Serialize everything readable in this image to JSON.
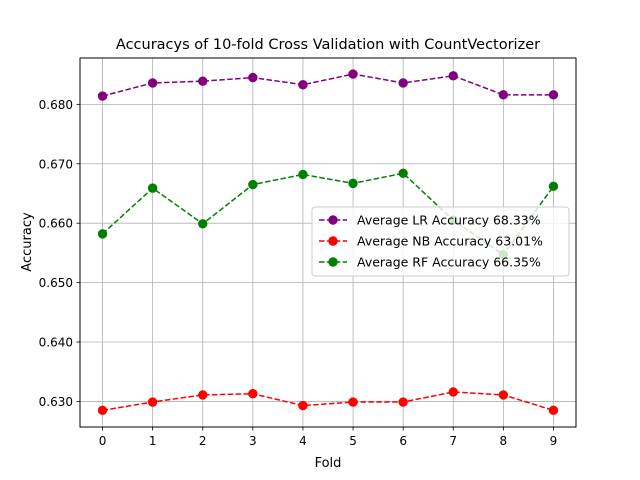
{
  "chart_data": {
    "type": "line",
    "title": "Accuracys of 10-fold Cross Validation with CountVectorizer",
    "xlabel": "Fold",
    "ylabel": "Accuracy",
    "x": [
      0,
      1,
      2,
      3,
      4,
      5,
      6,
      7,
      8,
      9
    ],
    "xticks": [
      "0",
      "1",
      "2",
      "3",
      "4",
      "5",
      "6",
      "7",
      "8",
      "9"
    ],
    "yticks": [
      "0.630",
      "0.640",
      "0.650",
      "0.660",
      "0.670",
      "0.680"
    ],
    "xlim": [
      -0.45,
      9.45
    ],
    "ylim": [
      0.6257,
      0.6878
    ],
    "grid": true,
    "legend_position": "center-right",
    "line_style": "dashed",
    "marker": "circle",
    "series": [
      {
        "name": "Average LR Accuracy 68.33%",
        "color": "#800080",
        "values": [
          0.6814,
          0.6836,
          0.6839,
          0.6845,
          0.6833,
          0.6851,
          0.6836,
          0.6848,
          0.6816,
          0.6816
        ]
      },
      {
        "name": "Average NB Accuracy 63.01%",
        "color": "#ff0000",
        "values": [
          0.6285,
          0.6299,
          0.6311,
          0.6313,
          0.6293,
          0.6299,
          0.6299,
          0.6316,
          0.6311,
          0.6285
        ]
      },
      {
        "name": "Average RF Accuracy 66.35%",
        "color": "#008000",
        "values": [
          0.6582,
          0.6659,
          0.6599,
          0.6665,
          0.6682,
          0.6667,
          0.6684,
          0.6605,
          0.6547,
          0.6662
        ]
      }
    ]
  }
}
